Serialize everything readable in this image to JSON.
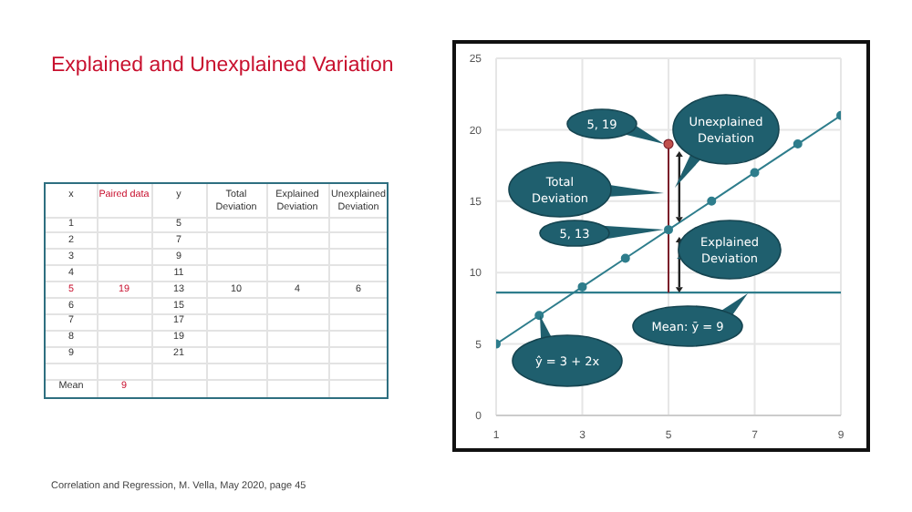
{
  "chart_data": {
    "type": "line",
    "title": "Explained and Unexplained Variation",
    "series": [
      {
        "color": "#2e7d8c",
        "x": [
          1,
          2,
          3,
          4,
          5,
          6,
          7,
          8,
          9
        ],
        "values": [
          5,
          7,
          9,
          11,
          13,
          15,
          17,
          19,
          21
        ],
        "marker": "circle"
      },
      {
        "type": "line",
        "color": "#7b1f2a",
        "x": [
          5,
          5
        ],
        "values": [
          8.6,
          19
        ],
        "marker": "none"
      },
      {
        "type": "scatter",
        "color": "#c0504d",
        "x": [
          5
        ],
        "values": [
          19
        ],
        "marker": "circle"
      }
    ],
    "xlim": [
      1,
      9
    ],
    "xticks": [
      1,
      3,
      5,
      7,
      9
    ],
    "ylim": [
      0,
      25
    ],
    "yticks": [
      0,
      5,
      10,
      15,
      20,
      25
    ],
    "grid": true,
    "ref_lines": [
      {
        "axis": "y",
        "value": 8.6,
        "color": "#2e7d8c"
      }
    ],
    "annotations": [
      "5, 19",
      "Total Deviation",
      "5, 13",
      "Unexplained Deviation",
      "Explained Deviation",
      "Mean: ȳ = 9",
      "ŷ = 3 + 2x",
      "Correlation and Regression, M. Vella, May 2020, page 45",
      "x",
      "Paired data",
      "y",
      "Total Deviation",
      "Explained Deviation",
      "Unexplained Deviation",
      "1",
      "5",
      "2",
      "7",
      "3",
      "9",
      "4",
      "11",
      "5",
      "19",
      "13",
      "10",
      "4",
      "6",
      "6",
      "15",
      "7",
      "17",
      "8",
      "19",
      "9",
      "21",
      "Mean",
      "9"
    ]
  }
}
